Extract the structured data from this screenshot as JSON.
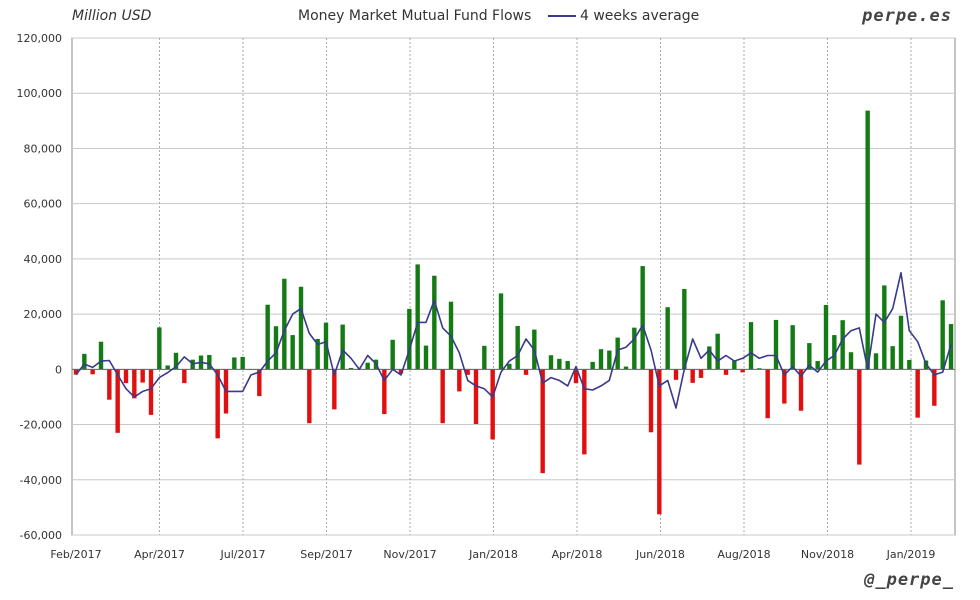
{
  "chart_data": {
    "type": "bar",
    "title": "Money Market Mutual Fund Flows",
    "unit_label": "Million USD",
    "brand": "perpe.es",
    "credit": "@_perpe_",
    "legend": [
      {
        "name": "4 weeks average",
        "color": "#3a3a8c"
      }
    ],
    "ylim": [
      -60000,
      120000
    ],
    "y_ticks": [
      "120,000",
      "100,000",
      "80,000",
      "60,000",
      "40,000",
      "20,000",
      "0",
      "-20,000",
      "-40,000",
      "-60,000"
    ],
    "x_ticks": [
      "Feb/2017",
      "Apr/2017",
      "Jul/2017",
      "Sep/2017",
      "Nov/2017",
      "Jan/2018",
      "Apr/2018",
      "Jun/2018",
      "Aug/2018",
      "Nov/2018",
      "Jan/2019"
    ],
    "positive_color": "#147a14",
    "negative_color": "#e01010",
    "grid": true,
    "values": [
      -1900,
      5600,
      -1800,
      10000,
      -11000,
      -23000,
      -5000,
      -10500,
      -4800,
      -16500,
      15200,
      1400,
      6000,
      -5000,
      3500,
      5000,
      5200,
      -25000,
      -16000,
      4300,
      4500,
      0,
      -9700,
      23400,
      15600,
      32800,
      12400,
      29900,
      -19500,
      11000,
      16900,
      -14500,
      16200,
      500,
      200,
      2400,
      3500,
      -16200,
      10700,
      -1500,
      21900,
      38000,
      8600,
      33900,
      -19500,
      24500,
      -8000,
      -2000,
      -19800,
      8500,
      -25400,
      27500,
      2000,
      15700,
      -2000,
      14400,
      -37600,
      5100,
      3800,
      3000,
      -5000,
      -30800,
      2700,
      7300,
      6800,
      11500,
      1000,
      15100,
      37400,
      -22800,
      -52500,
      22500,
      -3800,
      29100,
      -4900,
      -3100,
      8300,
      12900,
      -2000,
      3000,
      -1100,
      17100,
      400,
      -17700,
      17900,
      -12400,
      16000,
      -15000,
      9500,
      3000,
      23300,
      12400,
      17800,
      6200,
      -34500,
      93700,
      5800,
      30400,
      8400,
      19400,
      3400,
      -17500,
      3200,
      -13200,
      25000,
      16400
    ],
    "series": [
      {
        "name": "4 weeks average",
        "values": [
          -1900,
          1900,
          700,
          3000,
          3200,
          -2000,
          -7000,
          -10000,
          -8000,
          -7000,
          -3000,
          -1200,
          1000,
          4500,
          2000,
          2500,
          2000,
          -2000,
          -8000,
          -8000,
          -8000,
          -2000,
          -1000,
          3000,
          6000,
          14000,
          20000,
          22000,
          13000,
          9000,
          10000,
          -2000,
          7000,
          4000,
          0,
          5000,
          2000,
          -4000,
          0,
          -2000,
          7000,
          17000,
          17000,
          25000,
          15000,
          12000,
          6000,
          -4000,
          -6000,
          -7000,
          -10000,
          -1000,
          3000,
          5000,
          11000,
          7000,
          -5000,
          -3000,
          -4000,
          -6000,
          1000,
          -7000,
          -7500,
          -6000,
          -4000,
          7000,
          8000,
          11000,
          16000,
          7000,
          -6000,
          -4000,
          -14000,
          0,
          11000,
          4000,
          7000,
          3000,
          5000,
          3000,
          4000,
          6000,
          4000,
          5000,
          5000,
          -2000,
          1000,
          -2500,
          1500,
          -1000,
          3000,
          5000,
          11000,
          14000,
          15000,
          0,
          20000,
          17000,
          22000,
          35000,
          14000,
          10000,
          2000,
          -2000,
          -1000,
          9000
        ]
      }
    ]
  }
}
